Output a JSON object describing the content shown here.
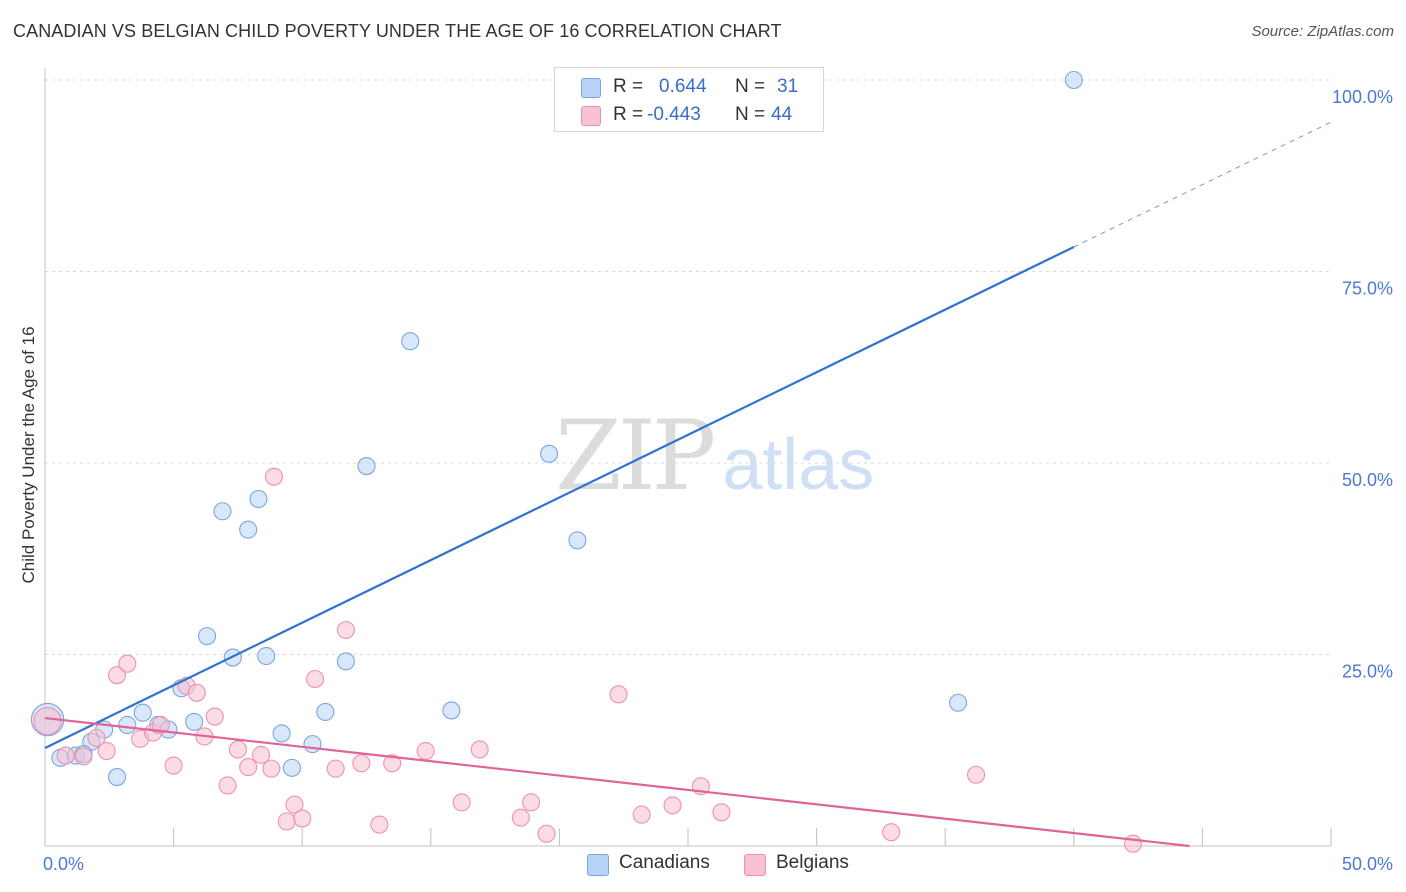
{
  "title": "CANADIAN VS BELGIAN CHILD POVERTY UNDER THE AGE OF 16 CORRELATION CHART",
  "source": "Source: ZipAtlas.com",
  "watermark": {
    "zip": "ZIP",
    "atlas": "atlas"
  },
  "legend": {
    "rows": [
      {
        "r_label": "R =",
        "r_value": "0.644",
        "n_label": "N =",
        "n_value": "31"
      },
      {
        "r_label": "R =",
        "r_value": "-0.443",
        "n_label": "N =",
        "n_value": "44"
      }
    ]
  },
  "bottom_legend": {
    "canadians": "Canadians",
    "belgians": "Belgians"
  },
  "colors": {
    "canadians_fill": "#b8d3f5",
    "canadians_stroke": "#7aa6e0",
    "canadians_line": "#2f72d2",
    "belgians_fill": "#f8c0d0",
    "belgians_stroke": "#ec92ad",
    "belgians_line": "#e0649a",
    "grid": "#d8d8d8",
    "axis_label": "#4a7bd0"
  },
  "chart_data": {
    "type": "scatter",
    "title": "CANADIAN VS BELGIAN CHILD POVERTY UNDER THE AGE OF 16 CORRELATION CHART",
    "xlabel": "",
    "ylabel": "Child Poverty Under the Age of 16",
    "xlim": [
      0,
      50
    ],
    "ylim": [
      0,
      100
    ],
    "x_tick_labels": [
      {
        "value": 0,
        "label": "0.0%"
      },
      {
        "value": 50,
        "label": "50.0%"
      }
    ],
    "y_tick_labels": [
      {
        "value": 25,
        "label": "25.0%"
      },
      {
        "value": 50,
        "label": "50.0%"
      },
      {
        "value": 75,
        "label": "75.0%"
      },
      {
        "value": 100,
        "label": "100.0%"
      }
    ],
    "x_minor_ticks": [
      5,
      10,
      15,
      20,
      25,
      30,
      35,
      40,
      45,
      50
    ],
    "grid_y": [
      25,
      50,
      75,
      100
    ],
    "series": [
      {
        "name": "Canadians",
        "color": "#7aa6e0",
        "points": [
          [
            0.1,
            16.5,
            1.9
          ],
          [
            0.6,
            11.5,
            1
          ],
          [
            1.2,
            11.8,
            1
          ],
          [
            1.8,
            13.6,
            1
          ],
          [
            2.3,
            15.2,
            1
          ],
          [
            2.8,
            9.0,
            1
          ],
          [
            3.2,
            15.8,
            1
          ],
          [
            3.8,
            17.4,
            1
          ],
          [
            4.4,
            15.8,
            1
          ],
          [
            4.8,
            15.2,
            1
          ],
          [
            5.3,
            20.6,
            1
          ],
          [
            5.8,
            16.2,
            1
          ],
          [
            6.3,
            27.4,
            1
          ],
          [
            6.9,
            43.7,
            1
          ],
          [
            7.3,
            24.6,
            1
          ],
          [
            7.9,
            41.3,
            1
          ],
          [
            8.3,
            45.3,
            1
          ],
          [
            8.6,
            24.8,
            1
          ],
          [
            9.2,
            14.7,
            1
          ],
          [
            9.6,
            10.2,
            1
          ],
          [
            10.4,
            13.3,
            1
          ],
          [
            10.9,
            17.5,
            1
          ],
          [
            11.7,
            24.1,
            1
          ],
          [
            12.5,
            49.6,
            1
          ],
          [
            14.2,
            65.9,
            1
          ],
          [
            15.8,
            17.7,
            1
          ],
          [
            19.6,
            51.2,
            1
          ],
          [
            20.7,
            39.9,
            1
          ],
          [
            35.5,
            18.7,
            1
          ],
          [
            40.0,
            100.0,
            1
          ],
          [
            1.5,
            12.0,
            1
          ]
        ]
      },
      {
        "name": "Belgians",
        "color": "#ec92ad",
        "points": [
          [
            0.1,
            16.3,
            1.6
          ],
          [
            0.8,
            11.8,
            1
          ],
          [
            1.5,
            11.7,
            1
          ],
          [
            2.0,
            14.1,
            1
          ],
          [
            2.4,
            12.4,
            1
          ],
          [
            2.8,
            22.3,
            1
          ],
          [
            3.2,
            23.8,
            1
          ],
          [
            3.7,
            14.0,
            1
          ],
          [
            4.2,
            14.8,
            1
          ],
          [
            4.5,
            15.8,
            1
          ],
          [
            5.0,
            10.5,
            1
          ],
          [
            5.5,
            20.9,
            1
          ],
          [
            5.9,
            20.0,
            1
          ],
          [
            6.2,
            14.3,
            1
          ],
          [
            6.6,
            16.9,
            1
          ],
          [
            7.1,
            7.9,
            1
          ],
          [
            7.5,
            12.6,
            1
          ],
          [
            7.9,
            10.3,
            1
          ],
          [
            8.4,
            11.9,
            1
          ],
          [
            8.8,
            10.1,
            1
          ],
          [
            8.9,
            48.2,
            1
          ],
          [
            9.4,
            3.2,
            1
          ],
          [
            9.7,
            5.4,
            1
          ],
          [
            10.0,
            3.6,
            1
          ],
          [
            10.5,
            21.8,
            1
          ],
          [
            11.3,
            10.1,
            1
          ],
          [
            11.7,
            28.2,
            1
          ],
          [
            12.3,
            10.8,
            1
          ],
          [
            13.0,
            2.8,
            1
          ],
          [
            13.5,
            10.8,
            1
          ],
          [
            14.8,
            12.4,
            1
          ],
          [
            16.2,
            5.7,
            1
          ],
          [
            16.9,
            12.6,
            1
          ],
          [
            18.5,
            3.7,
            1
          ],
          [
            18.9,
            5.7,
            1
          ],
          [
            19.5,
            1.6,
            1
          ],
          [
            22.3,
            19.8,
            1
          ],
          [
            23.2,
            4.1,
            1
          ],
          [
            24.4,
            5.3,
            1
          ],
          [
            25.5,
            7.8,
            1
          ],
          [
            26.3,
            4.4,
            1
          ],
          [
            32.9,
            1.8,
            1
          ],
          [
            36.2,
            9.3,
            1
          ],
          [
            42.3,
            0.3,
            1
          ]
        ]
      }
    ],
    "trendlines": [
      {
        "series": "Canadians",
        "x_start": 0,
        "y_start": 12.8,
        "x_end": 40.0,
        "y_end": 78.2,
        "dashed_to_x": 50.0,
        "dashed_to_y": 94.5
      },
      {
        "series": "Belgians",
        "x_start": 0,
        "y_start": 16.7,
        "x_end": 44.5,
        "y_end": 0.0
      }
    ]
  }
}
